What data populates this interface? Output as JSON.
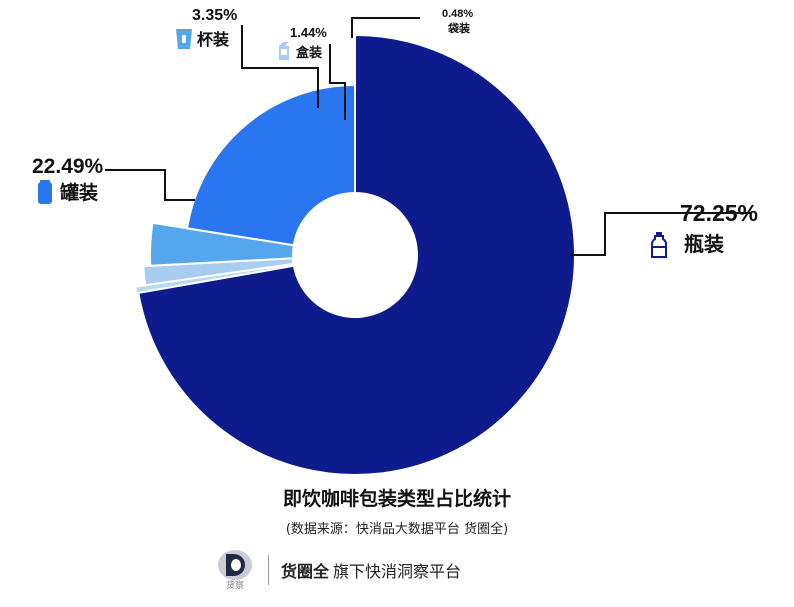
{
  "chart_data": {
    "type": "pie",
    "title": "即饮咖啡包装类型占比统计",
    "source": "(数据来源：快消品大数据平台 货圈全)",
    "slices": [
      {
        "name": "瓶装",
        "label": "72.25%",
        "value": 72.25,
        "color": "#0d1b8c",
        "icon": "bottle-icon"
      },
      {
        "name": "袋装",
        "label": "0.48%",
        "value": 0.48,
        "color": "#b8d8f2",
        "icon": ""
      },
      {
        "name": "盒装",
        "label": "1.44%",
        "value": 1.44,
        "color": "#a9cdf0",
        "icon": "box-icon"
      },
      {
        "name": "杯装",
        "label": "3.35%",
        "value": 3.35,
        "color": "#56a6ee",
        "icon": "cup-icon"
      },
      {
        "name": "罐装",
        "label": "22.49%",
        "value": 22.49,
        "color": "#2a76f0",
        "icon": "can-icon"
      }
    ],
    "legend": "none"
  },
  "footer": {
    "logo_text": "货察",
    "brand": "货圈全",
    "tagline": "旗下快消洞察平台"
  }
}
